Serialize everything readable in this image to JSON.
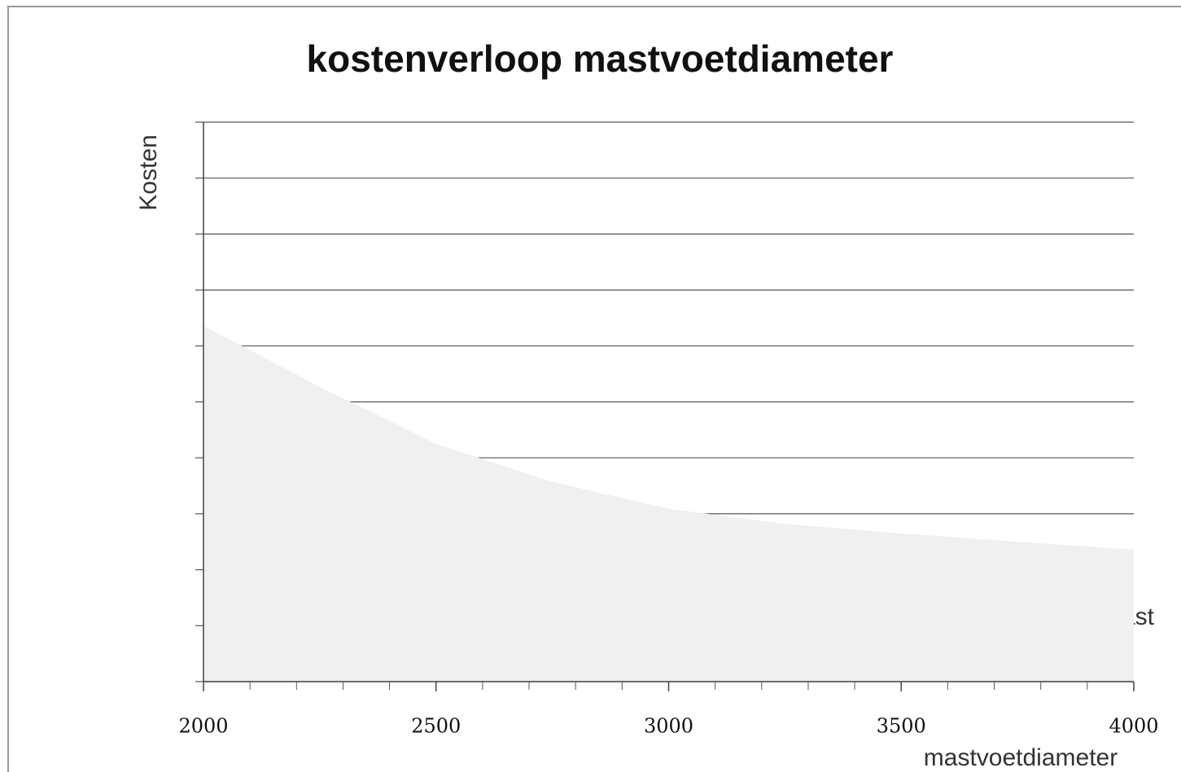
{
  "chart_data": {
    "type": "area",
    "title": "kostenverloop mastvoetdiameter",
    "x_label": "mastvoetdiameter",
    "y_label": "Kosten",
    "annotation": "mast",
    "x": [
      2000,
      2250,
      2500,
      2750,
      3000,
      3250,
      3500,
      3750,
      4000
    ],
    "values": [
      6.36,
      5.27,
      4.25,
      3.57,
      3.09,
      2.82,
      2.65,
      2.5,
      2.36
    ],
    "color": "#f0f0f0",
    "xlim": [
      2000,
      4000
    ],
    "xticks": [
      2000,
      2500,
      3000,
      3500,
      4000
    ],
    "ylim": [
      0,
      10
    ],
    "yticks": [
      0,
      1,
      2,
      3,
      4,
      5,
      6,
      7,
      8,
      9,
      10
    ],
    "grid": true
  }
}
